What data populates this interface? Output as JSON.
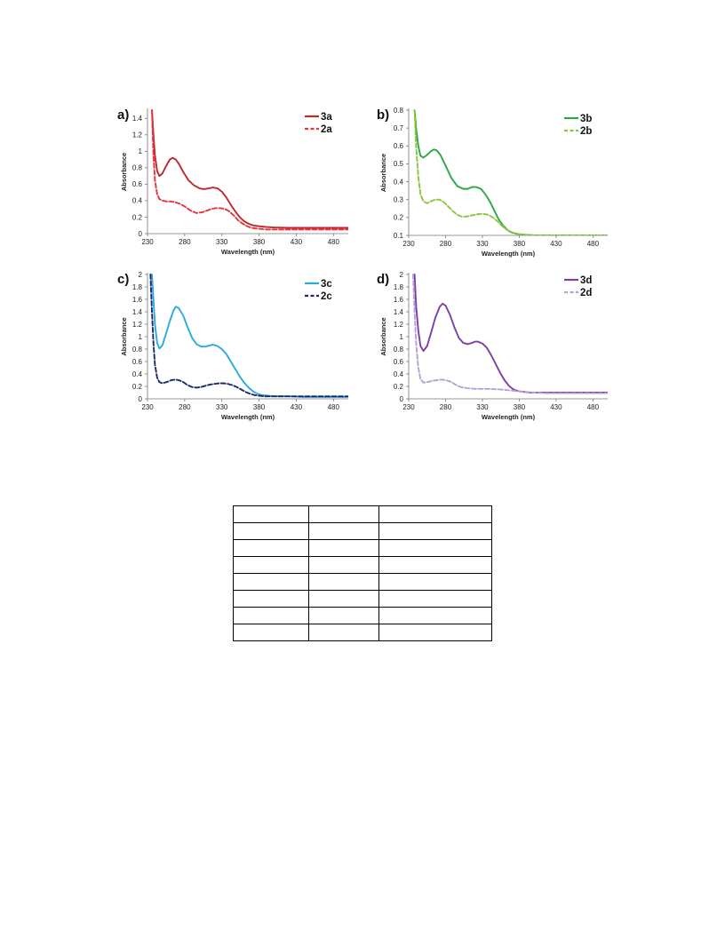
{
  "chart_data": [
    {
      "type": "line",
      "panel_label": "a)",
      "xlabel": "Wavelength (nm)",
      "ylabel": "Absorbance",
      "xlim": [
        230,
        500
      ],
      "ylim": [
        0,
        1.5
      ],
      "xticks": [
        230,
        280,
        330,
        380,
        430,
        480
      ],
      "yticks": [
        0,
        0.2,
        0.4,
        0.6,
        0.8,
        1,
        1.2,
        1.4
      ],
      "ytick_labels": [
        "0",
        "0.2",
        "0.4",
        "0.6",
        "0.8",
        "1",
        "1.2",
        "1.4"
      ],
      "legend_position": "top-right",
      "grid": false,
      "series": [
        {
          "name": "3a",
          "color": "#c0272d",
          "dash": false,
          "x": [
            236,
            238,
            240,
            243,
            246,
            250,
            255,
            260,
            264,
            268,
            272,
            278,
            285,
            292,
            300,
            306,
            312,
            318,
            324,
            330,
            336,
            342,
            348,
            354,
            360,
            366,
            372,
            380,
            390,
            400,
            420,
            440,
            460,
            480,
            500
          ],
          "y": [
            1.5,
            1.2,
            0.95,
            0.76,
            0.7,
            0.73,
            0.82,
            0.9,
            0.92,
            0.9,
            0.85,
            0.75,
            0.65,
            0.59,
            0.55,
            0.54,
            0.55,
            0.56,
            0.55,
            0.51,
            0.44,
            0.35,
            0.27,
            0.2,
            0.15,
            0.12,
            0.1,
            0.09,
            0.08,
            0.075,
            0.07,
            0.07,
            0.07,
            0.07,
            0.07
          ]
        },
        {
          "name": "2a",
          "color": "#e8343d",
          "dash": true,
          "x": [
            236,
            238,
            240,
            243,
            246,
            250,
            256,
            262,
            268,
            274,
            280,
            288,
            296,
            304,
            310,
            316,
            322,
            328,
            334,
            340,
            346,
            352,
            358,
            364,
            370,
            378,
            390,
            400,
            420,
            440,
            460,
            480,
            500
          ],
          "y": [
            1.5,
            0.95,
            0.65,
            0.48,
            0.42,
            0.4,
            0.39,
            0.39,
            0.38,
            0.36,
            0.33,
            0.28,
            0.25,
            0.26,
            0.28,
            0.3,
            0.31,
            0.31,
            0.3,
            0.27,
            0.22,
            0.16,
            0.12,
            0.09,
            0.07,
            0.06,
            0.05,
            0.05,
            0.05,
            0.05,
            0.05,
            0.05,
            0.05
          ]
        }
      ]
    },
    {
      "type": "line",
      "panel_label": "b)",
      "xlabel": "Wavelength (nm)",
      "ylabel": "Absorbance",
      "xlim": [
        230,
        500
      ],
      "ylim": [
        0.1,
        0.8
      ],
      "xticks": [
        230,
        280,
        330,
        380,
        430,
        480
      ],
      "yticks": [
        0.1,
        0.2,
        0.3,
        0.4,
        0.5,
        0.6,
        0.7,
        0.8
      ],
      "ytick_labels": [
        "0.1",
        "0.2",
        "0.3",
        "0.4",
        "0.5",
        "0.6",
        "0.7",
        "0.8"
      ],
      "legend_position": "top-right",
      "grid": false,
      "series": [
        {
          "name": "3b",
          "color": "#2aa845",
          "dash": false,
          "x": [
            238,
            240,
            243,
            246,
            250,
            255,
            260,
            264,
            268,
            273,
            280,
            288,
            296,
            304,
            310,
            316,
            322,
            328,
            334,
            340,
            346,
            352,
            358,
            364,
            370,
            378,
            386,
            394,
            400,
            420,
            440,
            460,
            480,
            500
          ],
          "y": [
            0.8,
            0.7,
            0.6,
            0.545,
            0.535,
            0.55,
            0.57,
            0.58,
            0.575,
            0.55,
            0.49,
            0.42,
            0.375,
            0.36,
            0.36,
            0.37,
            0.37,
            0.36,
            0.33,
            0.29,
            0.24,
            0.19,
            0.155,
            0.13,
            0.115,
            0.108,
            0.104,
            0.102,
            0.1,
            0.1,
            0.1,
            0.1,
            0.1,
            0.1
          ]
        },
        {
          "name": "2b",
          "color": "#8cc63f",
          "dash": true,
          "x": [
            238,
            240,
            243,
            246,
            250,
            255,
            260,
            266,
            272,
            278,
            284,
            290,
            296,
            302,
            308,
            314,
            320,
            326,
            332,
            338,
            344,
            350,
            356,
            362,
            368,
            376,
            384,
            392,
            400,
            420,
            440,
            460,
            480,
            500
          ],
          "y": [
            0.8,
            0.6,
            0.43,
            0.33,
            0.29,
            0.28,
            0.29,
            0.3,
            0.3,
            0.285,
            0.26,
            0.235,
            0.215,
            0.205,
            0.205,
            0.21,
            0.215,
            0.22,
            0.22,
            0.215,
            0.2,
            0.18,
            0.155,
            0.135,
            0.12,
            0.11,
            0.105,
            0.102,
            0.1,
            0.1,
            0.1,
            0.1,
            0.1,
            0.1
          ]
        }
      ]
    },
    {
      "type": "line",
      "panel_label": "c)",
      "xlabel": "Wavelength (nm)",
      "ylabel": "Absorbance",
      "xlim": [
        230,
        500
      ],
      "ylim": [
        0,
        2
      ],
      "xticks": [
        230,
        280,
        330,
        380,
        430,
        480
      ],
      "yticks": [
        0,
        0.2,
        0.4,
        0.6,
        0.8,
        1,
        1.2,
        1.4,
        1.6,
        1.8,
        2
      ],
      "ytick_labels": [
        "0",
        "0.2",
        "0.4",
        "0.6",
        "0.8",
        "1",
        "1.2",
        "1.4",
        "1.6",
        "1.8",
        "2"
      ],
      "legend_position": "top-right",
      "grid": false,
      "series": [
        {
          "name": "3c",
          "color": "#29abe2",
          "dash": false,
          "x": [
            236,
            238,
            240,
            243,
            246,
            250,
            255,
            260,
            265,
            268,
            272,
            278,
            284,
            290,
            296,
            302,
            308,
            314,
            318,
            324,
            330,
            336,
            342,
            348,
            354,
            360,
            366,
            372,
            378,
            384,
            392,
            400,
            420,
            440,
            460,
            480,
            500
          ],
          "y": [
            2.0,
            1.6,
            1.2,
            0.9,
            0.81,
            0.86,
            1.05,
            1.25,
            1.42,
            1.48,
            1.46,
            1.34,
            1.15,
            0.98,
            0.88,
            0.84,
            0.84,
            0.86,
            0.87,
            0.85,
            0.8,
            0.72,
            0.6,
            0.48,
            0.36,
            0.26,
            0.18,
            0.12,
            0.08,
            0.06,
            0.05,
            0.04,
            0.04,
            0.03,
            0.03,
            0.03,
            0.03
          ]
        },
        {
          "name": "2c",
          "color": "#1b2a6b",
          "dash": true,
          "x": [
            234,
            236,
            238,
            240,
            243,
            246,
            250,
            256,
            262,
            268,
            272,
            278,
            284,
            290,
            296,
            302,
            308,
            314,
            320,
            326,
            332,
            338,
            344,
            350,
            356,
            362,
            368,
            374,
            380,
            388,
            396,
            404,
            420,
            440,
            460,
            480,
            500
          ],
          "y": [
            2.0,
            1.4,
            0.9,
            0.55,
            0.34,
            0.27,
            0.25,
            0.27,
            0.3,
            0.31,
            0.3,
            0.27,
            0.22,
            0.19,
            0.18,
            0.19,
            0.21,
            0.23,
            0.24,
            0.25,
            0.25,
            0.24,
            0.22,
            0.19,
            0.15,
            0.11,
            0.08,
            0.06,
            0.05,
            0.04,
            0.04,
            0.04,
            0.04,
            0.04,
            0.04,
            0.04,
            0.04
          ]
        }
      ]
    },
    {
      "type": "line",
      "panel_label": "d)",
      "xlabel": "Wavelength (nm)",
      "ylabel": "Absorbance",
      "xlim": [
        230,
        500
      ],
      "ylim": [
        0,
        2
      ],
      "xticks": [
        230,
        280,
        330,
        380,
        430,
        480
      ],
      "yticks": [
        0,
        0.2,
        0.4,
        0.6,
        0.8,
        1,
        1.2,
        1.4,
        1.6,
        1.8,
        2
      ],
      "ytick_labels": [
        "0",
        "0.2",
        "0.4",
        "0.6",
        "0.8",
        "1",
        "1.2",
        "1.4",
        "1.6",
        "1.8",
        "2"
      ],
      "legend_position": "top-right",
      "grid": false,
      "series": [
        {
          "name": "3d",
          "color": "#7b3fa6",
          "dash": false,
          "x": [
            238,
            240,
            243,
            246,
            250,
            255,
            260,
            266,
            272,
            276,
            280,
            286,
            292,
            298,
            304,
            310,
            316,
            320,
            324,
            330,
            336,
            342,
            348,
            354,
            360,
            366,
            372,
            380,
            388,
            396,
            404,
            420,
            440,
            460,
            480,
            500
          ],
          "y": [
            2.0,
            1.5,
            1.1,
            0.85,
            0.77,
            0.85,
            1.05,
            1.3,
            1.48,
            1.53,
            1.5,
            1.35,
            1.15,
            0.98,
            0.9,
            0.88,
            0.9,
            0.92,
            0.92,
            0.89,
            0.82,
            0.7,
            0.56,
            0.42,
            0.3,
            0.21,
            0.15,
            0.12,
            0.11,
            0.1,
            0.1,
            0.1,
            0.1,
            0.1,
            0.1,
            0.1
          ]
        },
        {
          "name": "2d",
          "color": "#b7a0d6",
          "dash": true,
          "x": [
            236,
            238,
            240,
            243,
            246,
            250,
            256,
            262,
            268,
            274,
            280,
            286,
            292,
            298,
            304,
            310,
            320,
            330,
            340,
            348,
            356,
            364,
            372,
            380,
            390,
            400,
            420,
            440,
            460,
            480,
            500
          ],
          "y": [
            2.0,
            1.4,
            0.9,
            0.5,
            0.32,
            0.26,
            0.27,
            0.29,
            0.3,
            0.31,
            0.3,
            0.28,
            0.24,
            0.2,
            0.18,
            0.17,
            0.16,
            0.16,
            0.16,
            0.155,
            0.15,
            0.14,
            0.13,
            0.12,
            0.11,
            0.1,
            0.09,
            0.09,
            0.09,
            0.09,
            0.09
          ]
        }
      ]
    }
  ]
}
